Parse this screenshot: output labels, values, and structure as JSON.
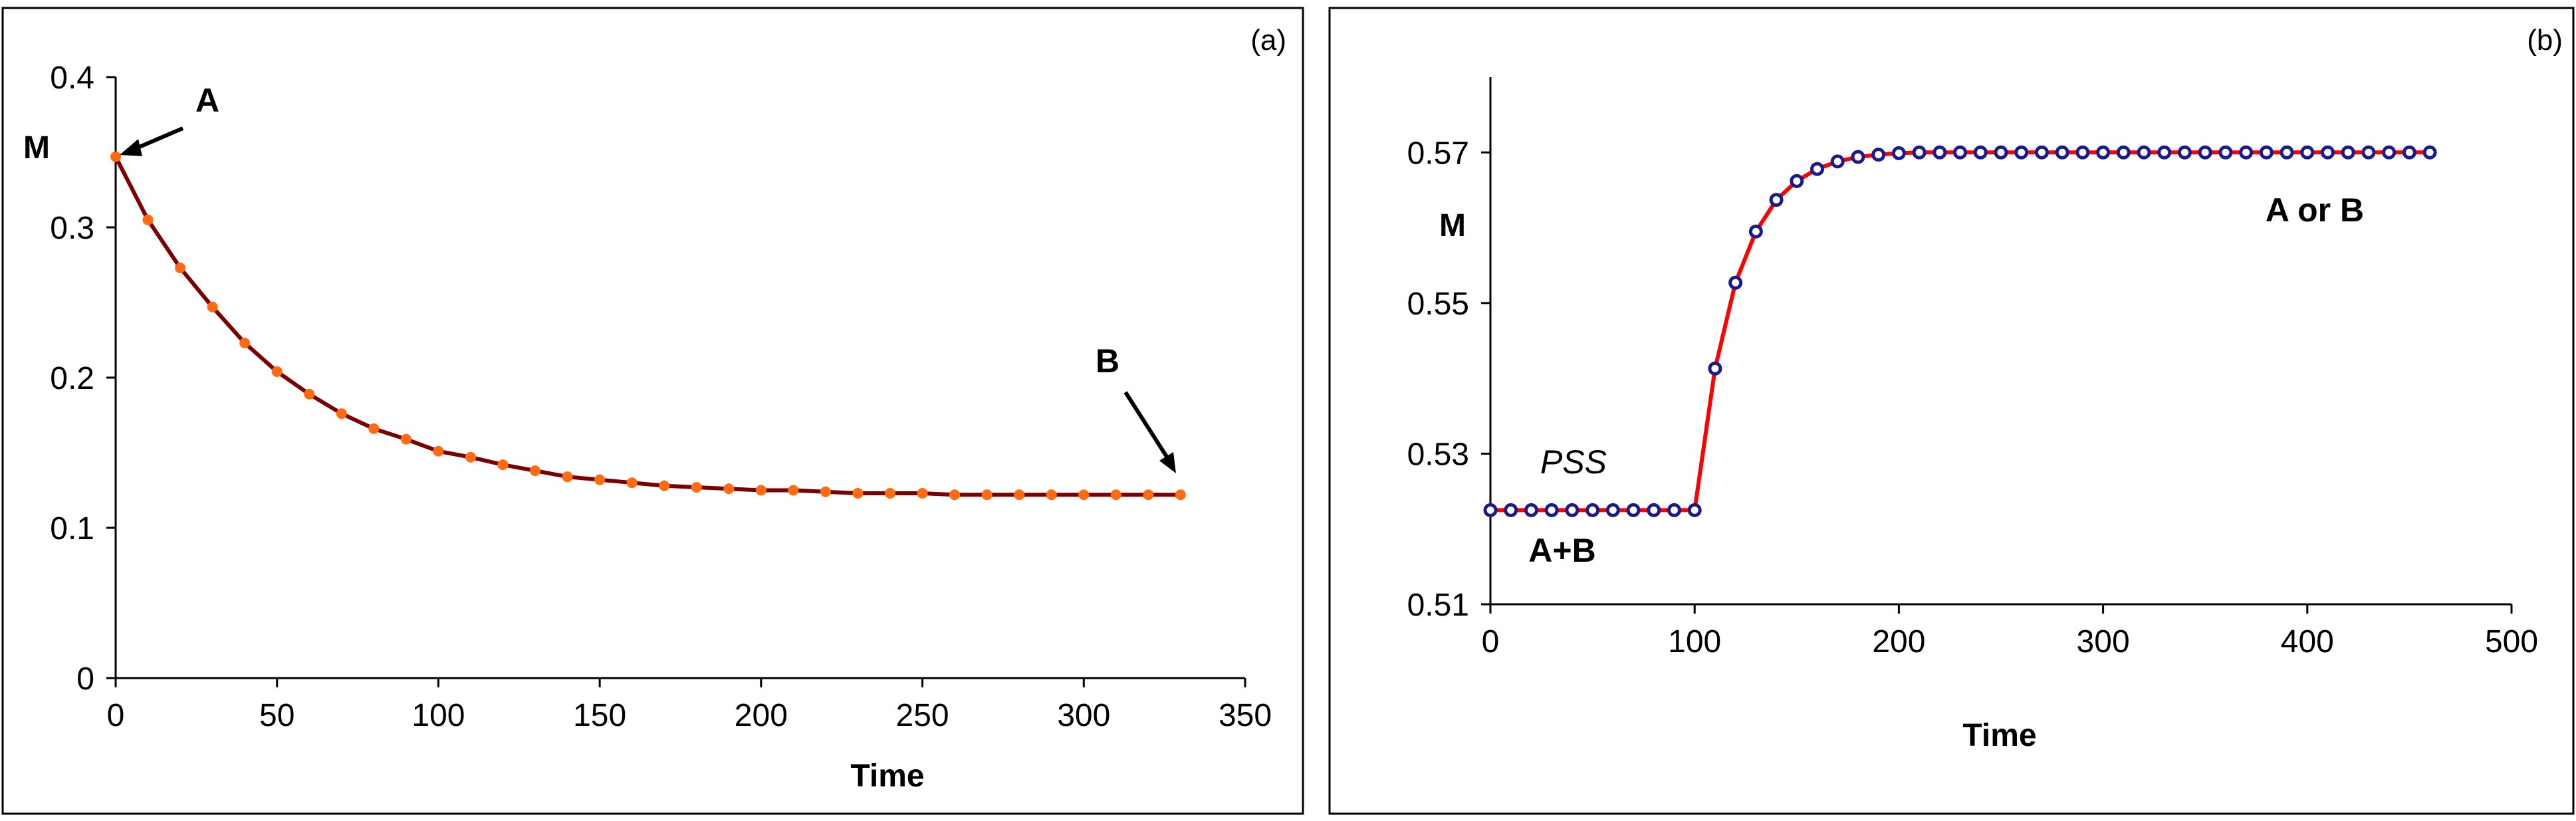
{
  "colors": {
    "panel_border": "#000000",
    "axis": "#000000",
    "curve_a": "#7a0000",
    "marker_a": "#ff6a13",
    "curve_b": "#ff0000",
    "marker_b": "#1a1a8a"
  },
  "chart_data": [
    {
      "type": "line",
      "panel_label": "(a)",
      "title": "",
      "xlabel": "Time",
      "ylabel": "M",
      "xlim": [
        0,
        350
      ],
      "ylim": [
        0,
        0.4
      ],
      "x_ticks": [
        0,
        50,
        100,
        150,
        200,
        250,
        300,
        350
      ],
      "y_ticks": [
        0,
        0.1,
        0.2,
        0.3,
        0.4
      ],
      "x_tick_labels": [
        "0",
        "50",
        "100",
        "150",
        "200",
        "250",
        "300",
        "350"
      ],
      "y_tick_labels": [
        "0",
        "0.1",
        "0.2",
        "0.3",
        "0.4"
      ],
      "grid": false,
      "series": [
        {
          "name": "M",
          "x": [
            0,
            10,
            20,
            30,
            40,
            50,
            60,
            70,
            80,
            90,
            100,
            110,
            120,
            130,
            140,
            150,
            160,
            170,
            180,
            190,
            200,
            210,
            220,
            230,
            240,
            250,
            260,
            270,
            280,
            290,
            300,
            310,
            320,
            330
          ],
          "y": [
            0.347,
            0.305,
            0.273,
            0.247,
            0.223,
            0.204,
            0.189,
            0.176,
            0.166,
            0.159,
            0.151,
            0.147,
            0.142,
            0.138,
            0.134,
            0.132,
            0.13,
            0.128,
            0.127,
            0.126,
            0.125,
            0.125,
            0.124,
            0.123,
            0.123,
            0.123,
            0.122,
            0.122,
            0.122,
            0.122,
            0.122,
            0.122,
            0.122,
            0.122
          ]
        }
      ],
      "annotations": [
        {
          "text": "A",
          "target_x": 0,
          "target_y": 0.347
        },
        {
          "text": "B",
          "target_x": 330,
          "target_y": 0.122
        }
      ]
    },
    {
      "type": "line",
      "panel_label": "(b)",
      "title": "",
      "xlabel": "Time",
      "ylabel": "M",
      "xlim": [
        0,
        500
      ],
      "ylim": [
        0.51,
        0.58
      ],
      "x_ticks": [
        0,
        100,
        200,
        300,
        400,
        500
      ],
      "y_ticks": [
        0.51,
        0.53,
        0.55,
        0.57
      ],
      "x_tick_labels": [
        "0",
        "100",
        "200",
        "300",
        "400",
        "500"
      ],
      "y_tick_labels": [
        "0.51",
        "0.53",
        "0.55",
        "0.57"
      ],
      "grid": false,
      "series": [
        {
          "name": "M",
          "x": [
            0,
            10,
            20,
            30,
            40,
            50,
            60,
            70,
            80,
            90,
            100,
            110,
            120,
            130,
            140,
            150,
            160,
            170,
            180,
            190,
            200,
            210,
            220,
            230,
            240,
            250,
            260,
            270,
            280,
            290,
            300,
            310,
            320,
            330,
            340,
            350,
            360,
            370,
            380,
            390,
            400,
            410,
            420,
            430,
            440,
            450,
            460
          ],
          "y": [
            0.5225,
            0.5225,
            0.5225,
            0.5225,
            0.5225,
            0.5225,
            0.5225,
            0.5225,
            0.5225,
            0.5225,
            0.5225,
            0.5413,
            0.5527,
            0.5595,
            0.5637,
            0.5662,
            0.5678,
            0.5688,
            0.5694,
            0.5697,
            0.5699,
            0.57,
            0.57,
            0.57,
            0.57,
            0.57,
            0.57,
            0.57,
            0.57,
            0.57,
            0.57,
            0.57,
            0.57,
            0.57,
            0.57,
            0.57,
            0.57,
            0.57,
            0.57,
            0.57,
            0.57,
            0.57,
            0.57,
            0.57,
            0.57,
            0.57,
            0.57
          ]
        }
      ],
      "annotations": [
        {
          "text": "PSS",
          "style": "italic"
        },
        {
          "text": "A+B",
          "style": "bold"
        },
        {
          "text": "A or B",
          "style": "bold"
        }
      ]
    }
  ]
}
